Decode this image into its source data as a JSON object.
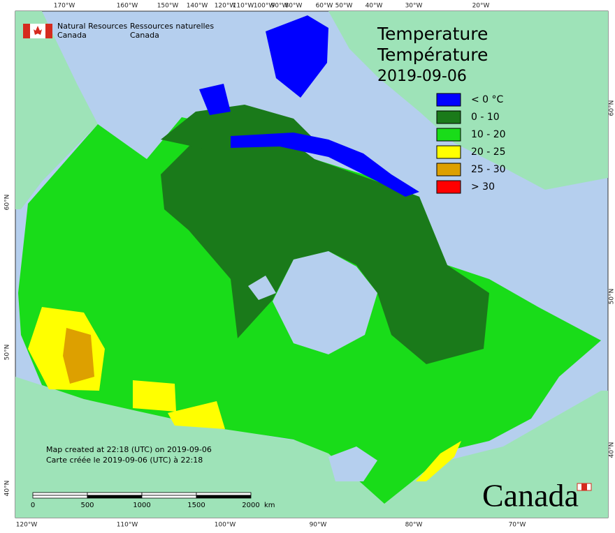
{
  "header": {
    "agency_en_1": "Natural Resources",
    "agency_en_2": "Canada",
    "agency_fr_1": "Ressources naturelles",
    "agency_fr_2": "Canada"
  },
  "title": {
    "en": "Temperature",
    "fr": "Température",
    "date": "2019-09-06"
  },
  "legend": [
    {
      "label": "< 0 °C",
      "color": "#0000ff"
    },
    {
      "label": "0 - 10",
      "color": "#1a7a1a"
    },
    {
      "label": "10 - 20",
      "color": "#19dc19"
    },
    {
      "label": "20 - 25",
      "color": "#ffff00"
    },
    {
      "label": "25 - 30",
      "color": "#dda000"
    },
    {
      "label": "> 30",
      "color": "#ff0000"
    }
  ],
  "footer": {
    "created_en": "Map created at 22:18 (UTC) on 2019-09-06",
    "created_fr": "Carte créée le 2019-09-06 (UTC) à 22:18"
  },
  "scale_bar": {
    "labels": [
      "0",
      "500",
      "1000",
      "1500",
      "2000"
    ],
    "unit": "km"
  },
  "graticule": {
    "top": [
      "170°W",
      "160°W",
      "150°W",
      "140°W",
      "120°W",
      "110°W",
      "100°W",
      "90°W",
      "80°W",
      "60°W",
      "50°W",
      "40°W",
      "30°W",
      "20°W"
    ],
    "bottom": [
      "120°W",
      "110°W",
      "100°W",
      "90°W",
      "80°W",
      "70°W"
    ],
    "left": [
      "60°N",
      "50°N",
      "40°N"
    ],
    "right": [
      "60°N",
      "50°N",
      "40°N"
    ]
  },
  "wordmark": "Canada"
}
